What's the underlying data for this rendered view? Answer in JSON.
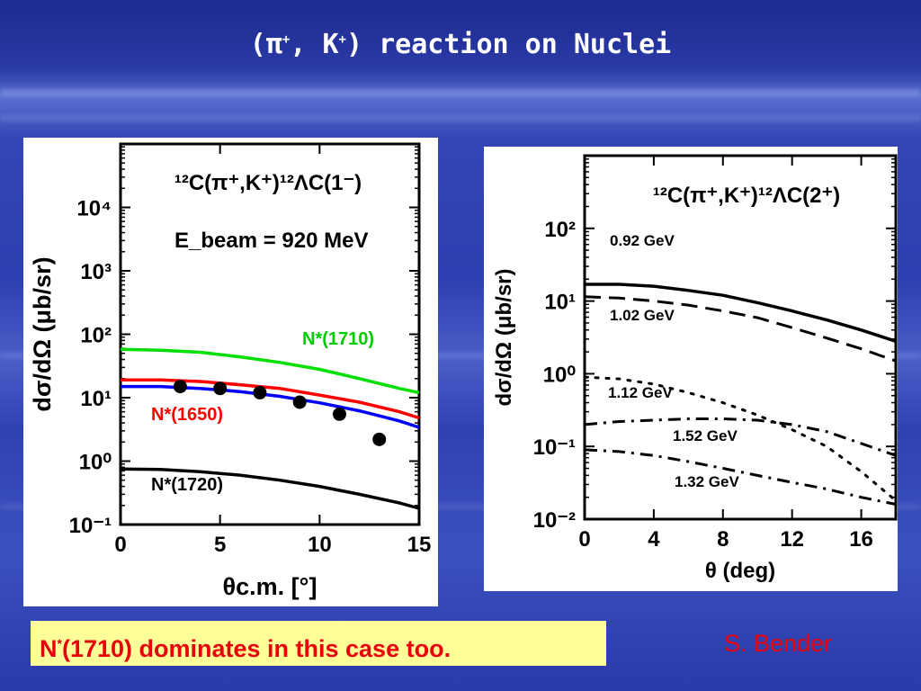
{
  "slide": {
    "title": {
      "open": "(",
      "pi": "π",
      "sup1": "+",
      "comma": ", K",
      "sup2": "+",
      "rest": ") reaction on Nuclei"
    },
    "note": {
      "pre": "N",
      "sup": "*",
      "rest": "(1710) dominates in this case too."
    },
    "author": "S. Bender"
  },
  "chart_data": [
    {
      "type": "line",
      "title": "¹²C(π⁺,K⁺)¹²ΛC(1⁻)",
      "subtitle": "E_beam = 920 MeV",
      "xlabel": "θc.m. [°]",
      "ylabel": "dσ/dΩ (μb/sr)",
      "xlim": [
        0,
        15
      ],
      "ylim": [
        0.1,
        100000
      ],
      "yscale": "log",
      "x_ticks": [
        "0",
        "5",
        "10",
        "15"
      ],
      "y_ticks": [
        {
          "value": 0.1,
          "label": "10⁻¹"
        },
        {
          "value": 1,
          "label": "10⁰"
        },
        {
          "value": 10,
          "label": "10¹"
        },
        {
          "value": 100,
          "label": "10²"
        },
        {
          "value": 1000,
          "label": "10³"
        },
        {
          "value": 10000,
          "label": "10⁴"
        }
      ],
      "series": [
        {
          "name": "N*(1710)",
          "color": "#00e000",
          "style": "solid",
          "x": [
            0,
            2,
            4,
            6,
            8,
            10,
            12,
            14,
            15
          ],
          "y": [
            58,
            56,
            52,
            44,
            36,
            28,
            20,
            14,
            12
          ]
        },
        {
          "name": "N*(1650)",
          "color": "#ff0000",
          "style": "solid",
          "x": [
            0,
            2,
            4,
            6,
            8,
            10,
            12,
            14,
            15
          ],
          "y": [
            19,
            19,
            18,
            16,
            14,
            11,
            8.5,
            6,
            4.8
          ]
        },
        {
          "name": "",
          "color": "#0000ff",
          "style": "solid",
          "x": [
            0,
            2,
            4,
            6,
            8,
            10,
            12,
            14,
            15
          ],
          "y": [
            15,
            15,
            14,
            12.5,
            10.5,
            8.3,
            6.2,
            4.3,
            3.4
          ]
        },
        {
          "name": "N*(1720)",
          "color": "#000000",
          "style": "solid",
          "x": [
            0,
            2,
            4,
            6,
            8,
            10,
            12,
            14,
            15
          ],
          "y": [
            0.75,
            0.74,
            0.68,
            0.6,
            0.5,
            0.4,
            0.3,
            0.22,
            0.18
          ]
        }
      ],
      "points": {
        "x": [
          3,
          5,
          7,
          9,
          11,
          13
        ],
        "y": [
          15,
          14,
          12,
          8.5,
          5.5,
          2.2
        ]
      },
      "labels": [
        {
          "text": "N*(1710)",
          "color": "#00cc00"
        },
        {
          "text": "N*(1650)",
          "color": "#ff0000"
        },
        {
          "text": "N*(1720)",
          "color": "#000000"
        }
      ]
    },
    {
      "type": "line",
      "title": "¹²C(π⁺,K⁺)¹²ΛC(2⁺)",
      "xlabel": "θ (deg)",
      "ylabel": "dσ/dΩ (μb/sr)",
      "xlim": [
        0,
        18
      ],
      "ylim": [
        0.01,
        1000
      ],
      "yscale": "log",
      "x_ticks": [
        "0",
        "4",
        "8",
        "12",
        "16"
      ],
      "y_ticks": [
        {
          "value": 0.01,
          "label": "10⁻²"
        },
        {
          "value": 0.1,
          "label": "10⁻¹"
        },
        {
          "value": 1,
          "label": "10⁰"
        },
        {
          "value": 10,
          "label": "10¹"
        },
        {
          "value": 100,
          "label": "10²"
        }
      ],
      "series": [
        {
          "name": "0.92 GeV",
          "color": "#000000",
          "style": "solid",
          "x": [
            0,
            2,
            4,
            6,
            8,
            10,
            12,
            14,
            16,
            18
          ],
          "y": [
            17,
            17,
            16,
            14,
            12,
            9.5,
            7.3,
            5.5,
            4,
            2.8
          ]
        },
        {
          "name": "1.02 GeV",
          "color": "#000000",
          "style": "dash",
          "x": [
            0,
            2,
            4,
            6,
            8,
            10,
            12,
            14,
            16,
            18
          ],
          "y": [
            11.5,
            11,
            10,
            8.8,
            7.3,
            5.9,
            4.3,
            3.1,
            2.2,
            1.5
          ]
        },
        {
          "name": "1.12 GeV",
          "color": "#000000",
          "style": "dot",
          "x": [
            0,
            2,
            4,
            6,
            8,
            10,
            12,
            14,
            16,
            18
          ],
          "y": [
            0.9,
            0.85,
            0.72,
            0.55,
            0.4,
            0.27,
            0.17,
            0.1,
            0.045,
            0.018
          ]
        },
        {
          "name": "1.52 GeV",
          "color": "#000000",
          "style": "dashdot",
          "x": [
            0,
            2,
            4,
            6,
            8,
            10,
            12,
            14,
            16,
            18
          ],
          "y": [
            0.2,
            0.22,
            0.23,
            0.24,
            0.24,
            0.23,
            0.2,
            0.16,
            0.11,
            0.075
          ]
        },
        {
          "name": "1.32 GeV",
          "color": "#000000",
          "style": "dashdot",
          "x": [
            0,
            2,
            4,
            6,
            8,
            10,
            12,
            14,
            16,
            18
          ],
          "y": [
            0.09,
            0.085,
            0.075,
            0.062,
            0.05,
            0.04,
            0.032,
            0.026,
            0.02,
            0.016
          ]
        }
      ]
    }
  ]
}
